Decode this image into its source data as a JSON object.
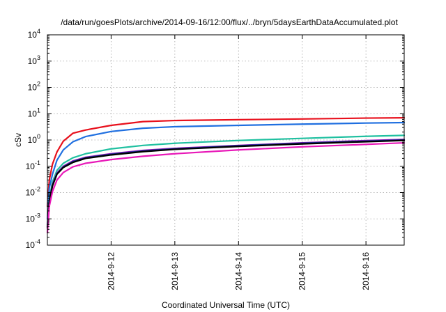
{
  "chart_data": {
    "type": "line",
    "title": "/data/run/goesPlots/archive/2014-09-16/12:00/flux/../bryn/5daysEarthDataAccumulated.plot",
    "xlabel": "Coordinated Universal Time (UTC)",
    "ylabel": "cSv",
    "yscale": "log",
    "ylim": [
      0.0001,
      10000
    ],
    "xlim": [
      0,
      5.6
    ],
    "grid": true,
    "x_ticks": [
      {
        "x": 1,
        "label": "2014-9-12"
      },
      {
        "x": 2,
        "label": "2014-9-13"
      },
      {
        "x": 3,
        "label": "2014-9-14"
      },
      {
        "x": 4,
        "label": "2014-9-15"
      },
      {
        "x": 5,
        "label": "2014-9-16"
      }
    ],
    "y_ticks": [
      {
        "value": 0.0001,
        "base": "10",
        "exp": "-4"
      },
      {
        "value": 0.001,
        "base": "10",
        "exp": "-3"
      },
      {
        "value": 0.01,
        "base": "10",
        "exp": "-2"
      },
      {
        "value": 0.1,
        "base": "10",
        "exp": "-1"
      },
      {
        "value": 1,
        "base": "10",
        "exp": "0"
      },
      {
        "value": 10,
        "base": "10",
        "exp": "1"
      },
      {
        "value": 100,
        "base": "10",
        "exp": "2"
      },
      {
        "value": 1000,
        "base": "10",
        "exp": "3"
      },
      {
        "value": 10000,
        "base": "10",
        "exp": "4"
      }
    ],
    "series": [
      {
        "color": "#e8101c",
        "x": [
          0.0,
          0.03,
          0.08,
          0.15,
          0.25,
          0.4,
          0.6,
          1.0,
          1.5,
          2.0,
          3.0,
          4.0,
          5.0,
          5.6
        ],
        "y": [
          0.003,
          0.03,
          0.12,
          0.35,
          0.9,
          1.8,
          2.4,
          3.6,
          5.0,
          5.5,
          5.9,
          6.3,
          6.8,
          7.0
        ]
      },
      {
        "color": "#1f6fe0",
        "x": [
          0.0,
          0.03,
          0.08,
          0.15,
          0.25,
          0.4,
          0.6,
          1.0,
          1.5,
          2.0,
          3.0,
          4.0,
          5.0,
          5.6
        ],
        "y": [
          0.001,
          0.015,
          0.05,
          0.17,
          0.42,
          0.85,
          1.35,
          2.1,
          2.8,
          3.2,
          3.6,
          4.0,
          4.4,
          4.6
        ]
      },
      {
        "color": "#1fc0a0",
        "x": [
          0.0,
          0.03,
          0.08,
          0.15,
          0.25,
          0.4,
          0.6,
          1.0,
          1.5,
          2.0,
          3.0,
          4.0,
          5.0,
          5.6
        ],
        "y": [
          0.0006,
          0.006,
          0.025,
          0.07,
          0.13,
          0.21,
          0.3,
          0.46,
          0.62,
          0.75,
          0.96,
          1.15,
          1.38,
          1.5
        ]
      },
      {
        "color": "#9b1cc0",
        "x": [
          0.0,
          0.03,
          0.08,
          0.15,
          0.25,
          0.4,
          0.6,
          1.0,
          1.5,
          2.0,
          3.0,
          4.0,
          5.0,
          5.6
        ],
        "y": [
          0.0005,
          0.005,
          0.02,
          0.055,
          0.1,
          0.16,
          0.22,
          0.3,
          0.4,
          0.48,
          0.62,
          0.78,
          0.95,
          1.05
        ]
      },
      {
        "color": "#102a8c",
        "x": [
          0.0,
          0.03,
          0.08,
          0.15,
          0.25,
          0.4,
          0.6,
          1.0,
          1.5,
          2.0,
          3.0,
          4.0,
          5.0,
          5.6
        ],
        "y": [
          0.0005,
          0.0048,
          0.019,
          0.052,
          0.095,
          0.15,
          0.21,
          0.285,
          0.38,
          0.46,
          0.6,
          0.75,
          0.9,
          1.0
        ]
      },
      {
        "color": "#000000",
        "x": [
          0.0,
          0.03,
          0.08,
          0.15,
          0.25,
          0.4,
          0.6,
          1.0,
          1.5,
          2.0,
          3.0,
          4.0,
          5.0,
          5.6
        ],
        "y": [
          0.00045,
          0.0045,
          0.018,
          0.05,
          0.09,
          0.14,
          0.2,
          0.27,
          0.36,
          0.44,
          0.57,
          0.71,
          0.86,
          0.96
        ]
      },
      {
        "color": "#e818b8",
        "x": [
          0.0,
          0.03,
          0.08,
          0.15,
          0.25,
          0.4,
          0.6,
          1.0,
          1.5,
          2.0,
          3.0,
          4.0,
          5.0,
          5.6
        ],
        "y": [
          0.0003,
          0.003,
          0.011,
          0.03,
          0.058,
          0.095,
          0.13,
          0.18,
          0.24,
          0.3,
          0.42,
          0.55,
          0.68,
          0.78
        ]
      }
    ]
  }
}
